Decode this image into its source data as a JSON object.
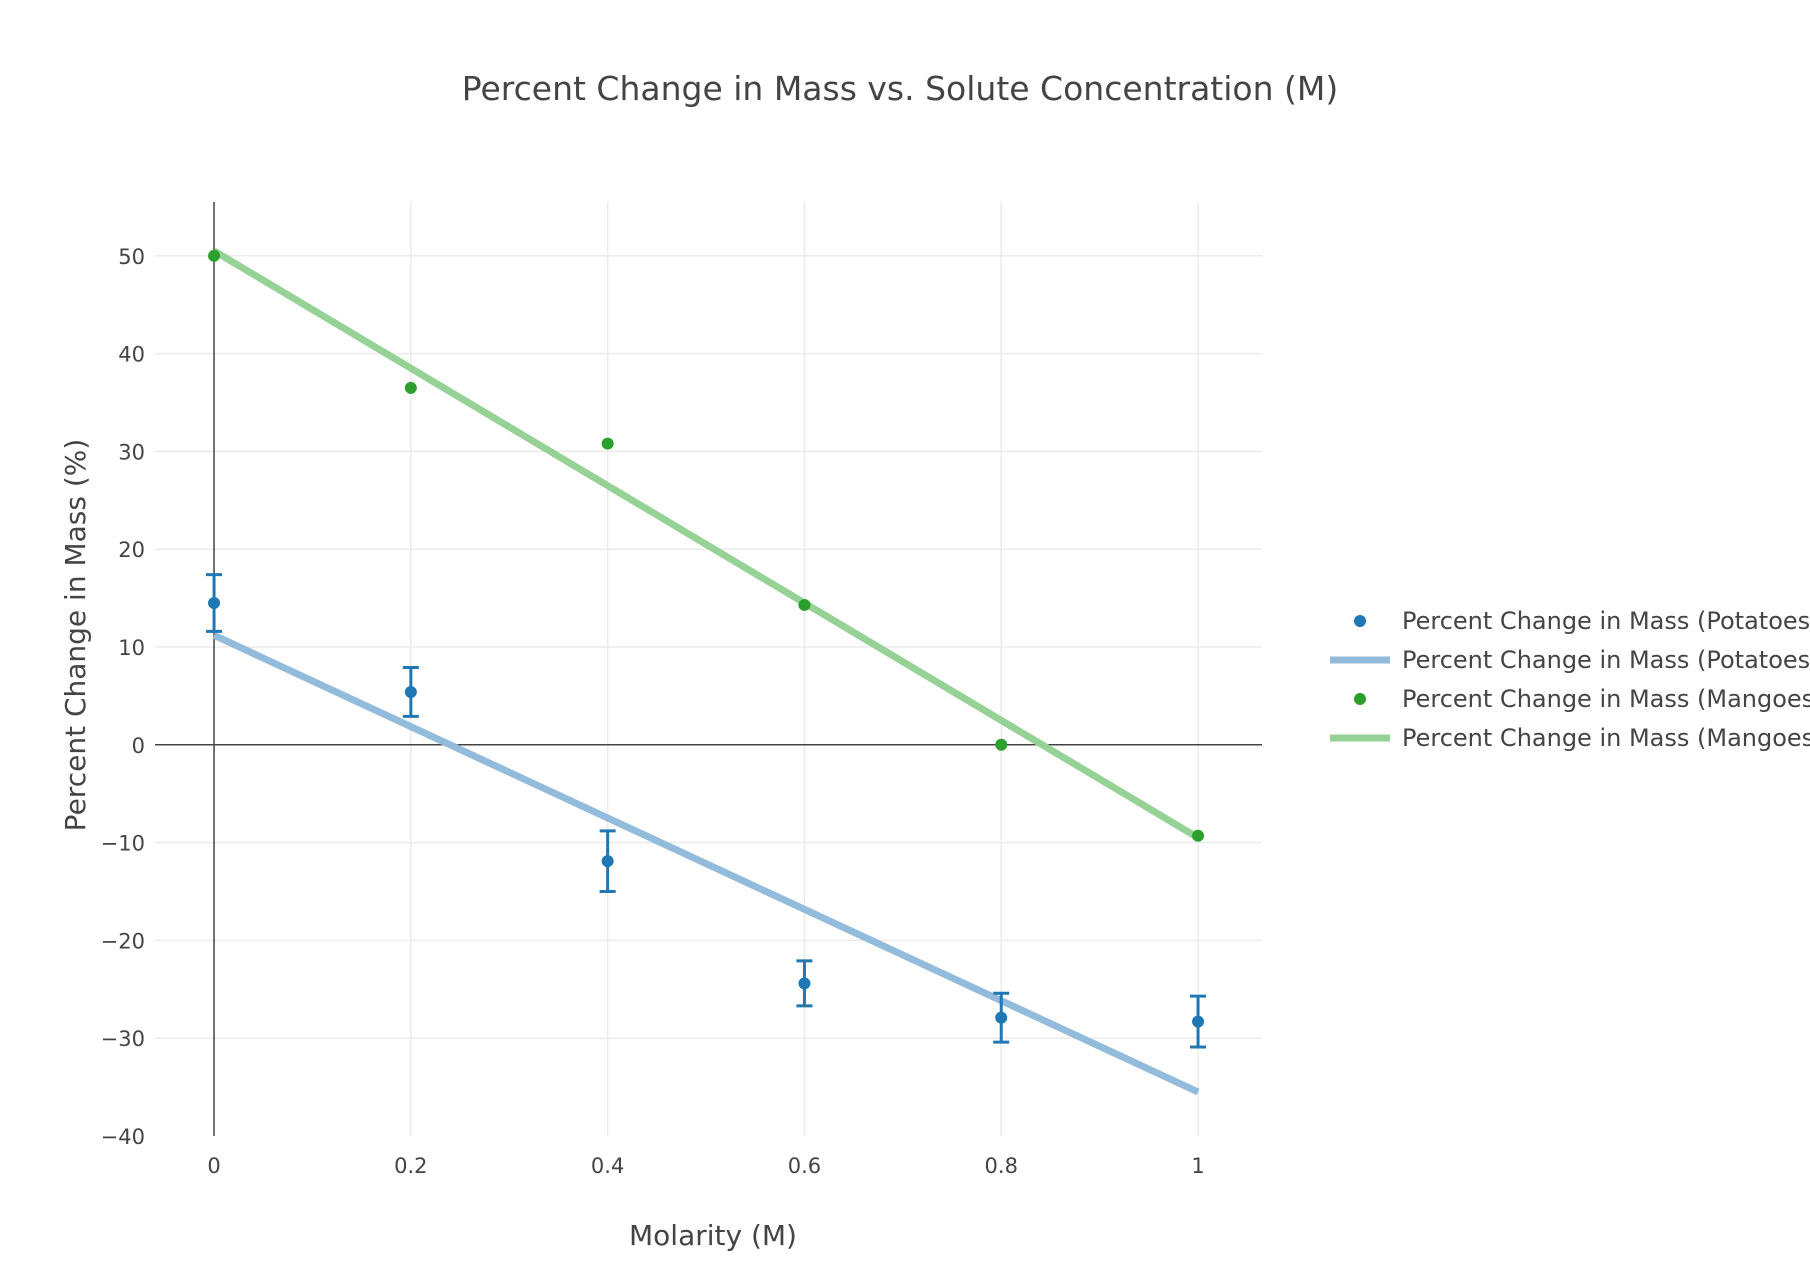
{
  "chart_data": {
    "type": "scatter",
    "title": "Percent Change in Mass vs. Solute Concentration (M)",
    "xlabel": "Molarity (M)",
    "ylabel": "Percent Change in Mass (%)",
    "xlim": [
      -0.06,
      1.065
    ],
    "ylim": [
      -40,
      55.5
    ],
    "grid": true,
    "legend_position": "right",
    "x_ticks": [
      0,
      0.2,
      0.4,
      0.6,
      0.8,
      1
    ],
    "x_tick_labels": [
      "0",
      "0.2",
      "0.4",
      "0.6",
      "0.8",
      "1"
    ],
    "y_ticks": [
      -40,
      -30,
      -20,
      -10,
      0,
      10,
      20,
      30,
      40,
      50
    ],
    "y_tick_labels": [
      "−40",
      "−30",
      "−20",
      "−10",
      "0",
      "10",
      "20",
      "30",
      "40",
      "50"
    ],
    "series": [
      {
        "name": "Percent Change in Mass (Potatoes",
        "kind": "markers",
        "color": "#1f77b4",
        "x": [
          0,
          0.2,
          0.4,
          0.6,
          0.8,
          1
        ],
        "y": [
          14.5,
          5.4,
          -11.9,
          -24.4,
          -27.9,
          -28.3
        ],
        "error": [
          2.9,
          2.5,
          3.1,
          2.3,
          2.5,
          2.6
        ]
      },
      {
        "name": "Percent Change in Mass (Potatoes",
        "kind": "line",
        "color": "#92bbdc",
        "x": [
          0,
          1
        ],
        "y": [
          11.2,
          -35.5
        ]
      },
      {
        "name": "Percent Change in Mass (Mangoes",
        "kind": "markers",
        "color": "#2ca02c",
        "x": [
          0,
          0.2,
          0.4,
          0.6,
          0.8,
          1
        ],
        "y": [
          50.0,
          36.5,
          30.8,
          14.3,
          0.0,
          -9.3
        ]
      },
      {
        "name": "Percent Change in Mass (Mangoes",
        "kind": "line",
        "color": "#96d195",
        "x": [
          0,
          1
        ],
        "y": [
          50.5,
          -9.5
        ]
      }
    ]
  }
}
